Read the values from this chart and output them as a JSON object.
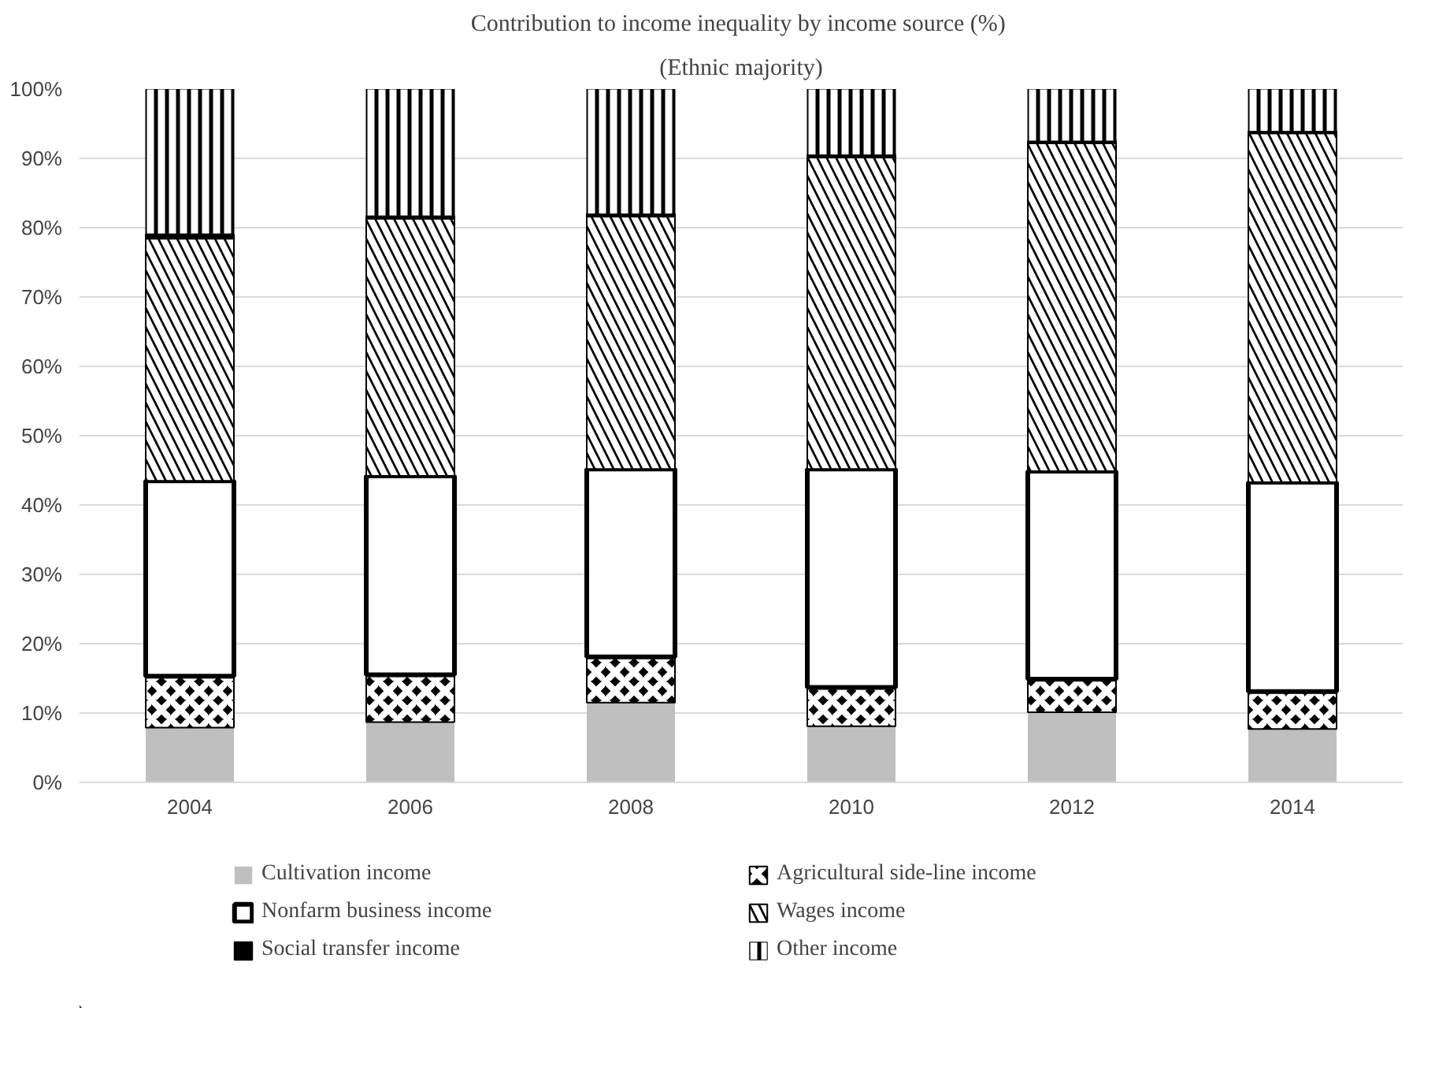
{
  "chart_data": {
    "type": "bar",
    "stacked": true,
    "title": "Contribution to  income inequality by income source (%)",
    "subtitle": "(Ethnic majority)",
    "categories": [
      "2004",
      "2006",
      "2008",
      "2010",
      "2012",
      "2014"
    ],
    "series": [
      {
        "name": "Cultivation income",
        "color": "#bfbfbf",
        "values": [
          7.9,
          8.7,
          11.5,
          8.1,
          10.1,
          7.7
        ]
      },
      {
        "name": "Agricultural side-line income",
        "color": "#000000",
        "values": [
          7.4,
          6.8,
          6.6,
          5.6,
          4.8,
          5.4
        ]
      },
      {
        "name": "Nonfarm business income",
        "color": "#ffffff",
        "values": [
          28.2,
          28.7,
          27.1,
          31.5,
          30.0,
          30.2
        ]
      },
      {
        "name": "Wages income",
        "color": "#000000",
        "values": [
          34.9,
          37.1,
          36.4,
          44.9,
          47.3,
          50.3
        ]
      },
      {
        "name": "Social transfer income",
        "color": "#000000",
        "values": [
          0.7,
          0.4,
          0.4,
          0.4,
          0.3,
          0.3
        ]
      },
      {
        "name": "Other income",
        "color": "#000000",
        "values": [
          20.9,
          18.3,
          18.0,
          9.5,
          7.5,
          6.1
        ]
      }
    ],
    "ylim": [
      0,
      100
    ],
    "yticks": [
      {
        "value": 0,
        "label": "0%"
      },
      {
        "value": 10,
        "label": "10%"
      },
      {
        "value": 20,
        "label": "20%"
      },
      {
        "value": 30,
        "label": "30%"
      },
      {
        "value": 40,
        "label": "40%"
      },
      {
        "value": 50,
        "label": "50%"
      },
      {
        "value": 60,
        "label": "60%"
      },
      {
        "value": 70,
        "label": "70%"
      },
      {
        "value": 80,
        "label": "80%"
      },
      {
        "value": 90,
        "label": "90%"
      },
      {
        "value": 100,
        "label": "100%"
      }
    ],
    "grid": "y",
    "legend": "bottom"
  }
}
